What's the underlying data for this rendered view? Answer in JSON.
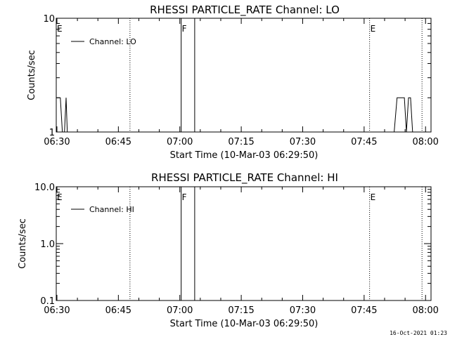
{
  "chart_data": [
    {
      "type": "line",
      "title": "RHESSI PARTICLE_RATE Channel: LO",
      "xlabel": "Start Time (10-Mar-03 06:29:50)",
      "ylabel": "Counts/sec",
      "x_ticks": [
        "06:30",
        "06:45",
        "07:00",
        "07:15",
        "07:30",
        "07:45",
        "08:00"
      ],
      "x_range_minutes": [
        0,
        91.5
      ],
      "y_scale": "log",
      "ylim": [
        1,
        10
      ],
      "y_ticks": [
        "1",
        "10"
      ],
      "legend": {
        "label": "Channel: LO",
        "placement": "top-left"
      },
      "series": [
        {
          "name": "Channel: LO",
          "points": [
            [
              0,
              2
            ],
            [
              1,
              2
            ],
            [
              1.5,
              1
            ],
            [
              2,
              1
            ],
            [
              2.4,
              2
            ],
            [
              2.7,
              1
            ],
            [
              3,
              1
            ],
            [
              82.5,
              1
            ],
            [
              83.2,
              2
            ],
            [
              85,
              2
            ],
            [
              85.5,
              1
            ],
            [
              86,
              2
            ],
            [
              86.5,
              2
            ],
            [
              87,
              1
            ]
          ]
        }
      ],
      "markers": [
        {
          "label": "E",
          "minute": 0,
          "style": "none"
        },
        {
          "label": "",
          "minute": 18,
          "style": "dotted"
        },
        {
          "label": "F",
          "minute": 30.5,
          "style": "solid"
        },
        {
          "label": "",
          "minute": 33.8,
          "style": "solid"
        },
        {
          "label": "E",
          "minute": 76.5,
          "style": "dotted"
        },
        {
          "label": "",
          "minute": 89.3,
          "style": "dotted"
        }
      ]
    },
    {
      "type": "line",
      "title": "RHESSI PARTICLE_RATE Channel: HI",
      "xlabel": "Start Time (10-Mar-03 06:29:50)",
      "ylabel": "Counts/sec",
      "x_ticks": [
        "06:30",
        "06:45",
        "07:00",
        "07:15",
        "07:30",
        "07:45",
        "08:00"
      ],
      "x_range_minutes": [
        0,
        91.5
      ],
      "y_scale": "log",
      "ylim": [
        0.1,
        10
      ],
      "y_ticks": [
        "0.1",
        "1.0",
        "10.0"
      ],
      "legend": {
        "label": "Channel: HI",
        "placement": "top-left"
      },
      "series": [
        {
          "name": "Channel: HI",
          "points": []
        }
      ],
      "markers": [
        {
          "label": "E",
          "minute": 0,
          "style": "none"
        },
        {
          "label": "",
          "minute": 18,
          "style": "dotted"
        },
        {
          "label": "F",
          "minute": 30.5,
          "style": "solid"
        },
        {
          "label": "",
          "minute": 33.8,
          "style": "solid"
        },
        {
          "label": "E",
          "minute": 76.5,
          "style": "dotted"
        },
        {
          "label": "",
          "minute": 89.3,
          "style": "dotted"
        }
      ]
    }
  ],
  "footer": {
    "timestamp": "16-Oct-2021 01:23"
  }
}
